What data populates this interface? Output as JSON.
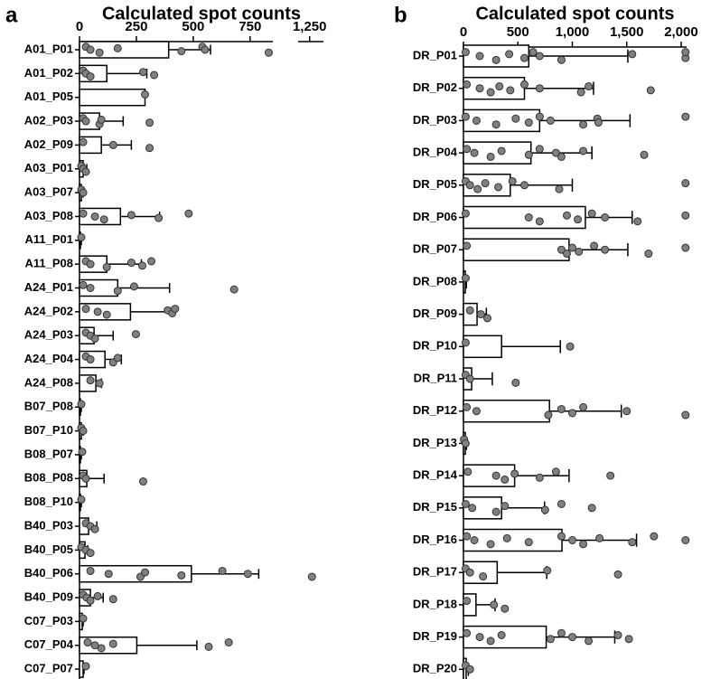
{
  "chart_data": [
    {
      "type": "bar",
      "orientation": "horizontal",
      "label": "a",
      "title": "Calculated spot counts",
      "categories": [
        "A01_P01",
        "A01_P02",
        "A01_P05",
        "A02_P03",
        "A02_P09",
        "A03_P01",
        "A03_P07",
        "A03_P08",
        "A11_P01",
        "A11_P08",
        "A24_P01",
        "A24_P02",
        "A24_P03",
        "A24_P04",
        "A24_P08",
        "B07_P08",
        "B07_P10",
        "B08_P07",
        "B08_P08",
        "B08_P10",
        "B40_P03",
        "B40_P05",
        "B40_P06",
        "B40_P09",
        "C07_P03",
        "C07_P04",
        "C07_P07"
      ],
      "values": [
        392,
        120,
        288,
        88,
        96,
        16,
        8,
        180,
        4,
        120,
        168,
        224,
        64,
        112,
        72,
        4,
        8,
        4,
        32,
        4,
        40,
        24,
        492,
        48,
        12,
        252,
        16
      ],
      "errors": [
        184,
        176,
        null,
        104,
        132,
        16,
        8,
        172,
        4,
        152,
        228,
        184,
        84,
        72,
        24,
        4,
        8,
        4,
        76,
        4,
        36,
        12,
        296,
        56,
        4,
        264,
        4
      ],
      "points": [
        [
          28,
          48,
          88,
          168,
          448,
          540,
          552,
          832
        ],
        [
          16,
          28,
          48,
          280,
          328
        ],
        [
          288
        ],
        [
          16,
          28,
          88,
          96,
          308
        ],
        [
          16,
          148,
          308
        ],
        [
          8,
          16,
          28
        ],
        [
          8,
          16
        ],
        [
          16,
          68,
          108,
          228,
          348,
          480
        ],
        [
          8
        ],
        [
          28,
          48,
          120,
          228,
          276,
          316
        ],
        [
          16,
          48,
          168,
          240,
          680
        ],
        [
          28,
          80,
          120,
          388,
          408,
          420
        ],
        [
          28,
          48,
          68,
          248
        ],
        [
          28,
          48,
          148,
          168
        ],
        [
          48,
          88
        ],
        [
          8
        ],
        [
          8,
          16
        ],
        [
          12
        ],
        [
          16,
          28,
          280
        ],
        [
          8
        ],
        [
          28,
          48,
          68
        ],
        [
          8,
          28,
          48
        ],
        [
          48,
          128,
          268,
          288,
          448,
          628,
          740,
          1260
        ],
        [
          16,
          32,
          48,
          80,
          148
        ],
        [
          16
        ],
        [
          36,
          68,
          96,
          148,
          568,
          656
        ],
        [
          28
        ]
      ],
      "bar_color": "#ffffff",
      "point_color": "#808080",
      "xlim": [
        0,
        850
      ],
      "xticks": [
        0,
        250,
        500,
        750
      ],
      "xlim2": [
        1200,
        1310
      ],
      "xticks2": [
        {
          "value": 1250,
          "label": "1,250"
        }
      ]
    },
    {
      "type": "bar",
      "orientation": "horizontal",
      "label": "b",
      "title": "Calculated spot counts",
      "categories": [
        "DR_P01",
        "DR_P02",
        "DR_P03",
        "DR_P04",
        "DR_P05",
        "DR_P06",
        "DR_P07",
        "DR_P08",
        "DR_P09",
        "DR_P10",
        "DR_P11",
        "DR_P12",
        "DR_P13",
        "DR_P14",
        "DR_P15",
        "DR_P16",
        "DR_P17",
        "DR_P18",
        "DR_P19",
        "DR_P20"
      ],
      "values": [
        600,
        560,
        700,
        620,
        430,
        1120,
        970,
        17,
        125,
        350,
        75,
        790,
        17,
        470,
        350,
        905,
        310,
        115,
        760,
        25
      ],
      "errors": [
        910,
        635,
        830,
        560,
        570,
        430,
        540,
        10,
        85,
        540,
        190,
        660,
        10,
        500,
        395,
        685,
        455,
        175,
        630,
        20
      ],
      "points": [
        [
          20,
          150,
          300,
          420,
          560,
          640,
          700,
          900,
          1550,
          2040,
          2040
        ],
        [
          30,
          150,
          250,
          330,
          430,
          560,
          700,
          1080,
          1150,
          1720
        ],
        [
          20,
          120,
          300,
          480,
          600,
          700,
          800,
          1100,
          1230,
          1240,
          2040
        ],
        [
          30,
          100,
          250,
          350,
          600,
          700,
          850,
          900,
          1100,
          1660
        ],
        [
          20,
          60,
          130,
          200,
          320,
          450,
          560,
          880,
          2040
        ],
        [
          20,
          600,
          700,
          950,
          1050,
          1180,
          1300,
          1600,
          2040
        ],
        [
          30,
          900,
          950,
          1000,
          1060,
          1200,
          1300,
          1700,
          2040
        ],
        [
          20
        ],
        [
          60,
          160,
          220
        ],
        [
          20,
          980
        ],
        [
          20,
          60,
          480
        ],
        [
          30,
          120,
          780,
          900,
          1000,
          1100,
          1500,
          2040
        ],
        [
          5,
          20
        ],
        [
          40,
          300,
          380,
          470,
          700,
          850,
          1350
        ],
        [
          20,
          80,
          300,
          380,
          750,
          900,
          1180
        ],
        [
          30,
          100,
          250,
          400,
          600,
          900,
          1000,
          1100,
          1250,
          1550,
          1750,
          2040
        ],
        [
          20,
          60,
          180,
          770,
          1420
        ],
        [
          30,
          280,
          380
        ],
        [
          30,
          150,
          250,
          350,
          800,
          900,
          1000,
          1150,
          1420,
          1520
        ],
        [
          20,
          60
        ]
      ],
      "bar_color": "#ffffff",
      "point_color": "#808080",
      "xlim": [
        0,
        2050
      ],
      "xticks": [
        0,
        500,
        {
          "value": 1000,
          "label": "1,000"
        },
        {
          "value": 1500,
          "label": "1,500"
        },
        {
          "value": 2000,
          "label": "2,000"
        }
      ]
    }
  ]
}
